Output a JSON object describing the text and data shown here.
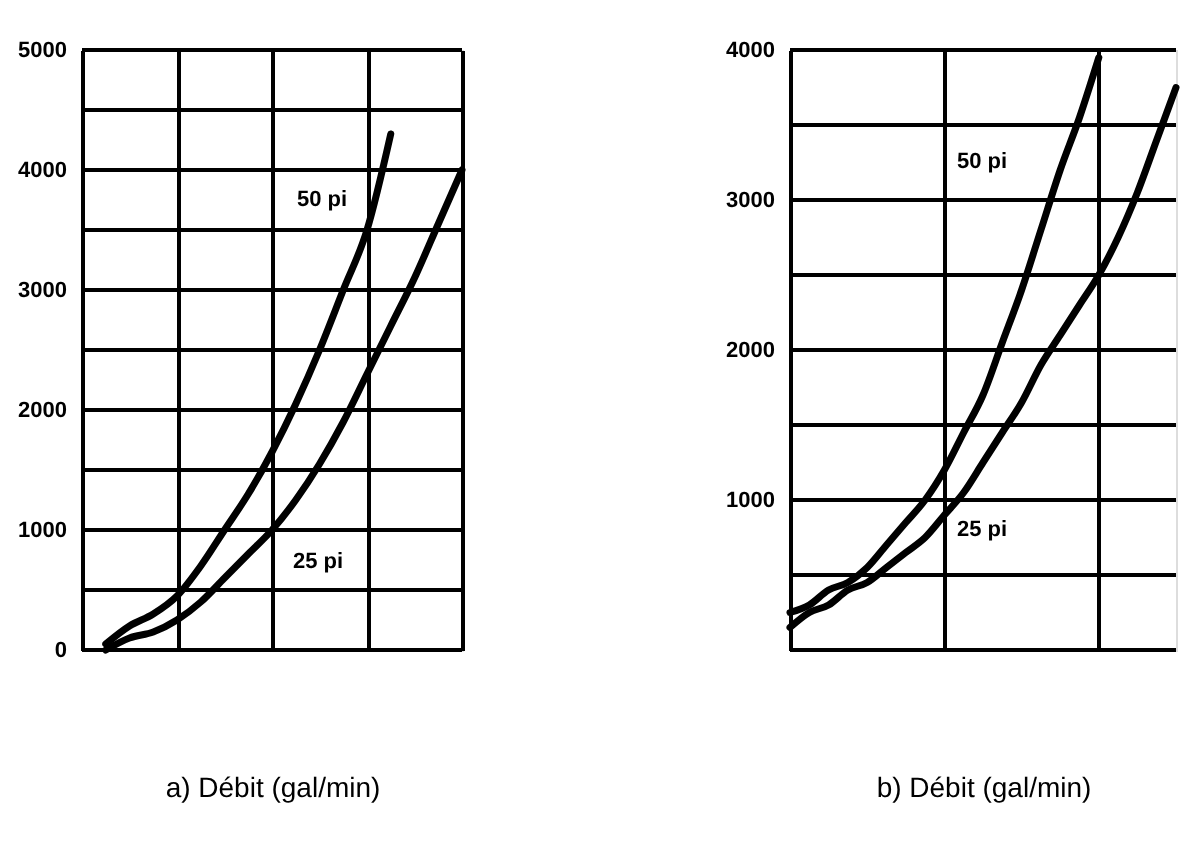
{
  "chart_data": [
    {
      "type": "line",
      "xlabel": "a) Débit (gal/min)",
      "categories": [
        null,
        null,
        null,
        null,
        null,
        null,
        null,
        null,
        null,
        null,
        null,
        null,
        null,
        null,
        null,
        null,
        null
      ],
      "series": [
        {
          "name": "50 pi",
          "color": "#000000",
          "values": [
            null,
            50,
            200,
            300,
            450,
            700,
            1000,
            1300,
            1650,
            2050,
            2500,
            3000,
            3500,
            4300,
            null,
            null,
            null
          ]
        },
        {
          "name": "25 pi",
          "color": "#000000",
          "values": [
            null,
            0,
            100,
            150,
            250,
            400,
            600,
            800,
            1000,
            1250,
            1550,
            1900,
            2300,
            2700,
            3100,
            3550,
            4000
          ]
        }
      ],
      "ylim": [
        0,
        5000
      ],
      "yticks": [
        0,
        {
          "value": 500,
          "label": null
        },
        1000,
        {
          "value": 1500,
          "label": null
        },
        2000,
        {
          "value": 2500,
          "label": null
        },
        3000,
        {
          "value": 3500,
          "label": null
        },
        4000,
        {
          "value": 4500,
          "label": null
        },
        5000
      ],
      "grid": true,
      "tick_labels": "y",
      "line_style": "solid",
      "marker": "none"
    },
    {
      "type": "line",
      "xlabel": "b) Débit (gal/min)",
      "categories": [
        null,
        null,
        null,
        null,
        null,
        null,
        null,
        null,
        null,
        null,
        null,
        null,
        null,
        null,
        null,
        null,
        null,
        null,
        null,
        null,
        null
      ],
      "series": [
        {
          "name": "50 pi",
          "color": "#000000",
          "values": [
            250,
            300,
            400,
            450,
            550,
            700,
            850,
            1000,
            1200,
            1450,
            1700,
            2050,
            2400,
            2800,
            3200,
            3550,
            3950,
            null,
            null,
            null,
            null
          ]
        },
        {
          "name": "25 pi",
          "color": "#000000",
          "values": [
            150,
            250,
            300,
            400,
            450,
            550,
            650,
            750,
            900,
            1050,
            1250,
            1450,
            1650,
            1900,
            2100,
            2300,
            2500,
            2750,
            3050,
            3400,
            3750
          ]
        }
      ],
      "ylim": [
        0,
        4000
      ],
      "yticks": [
        {
          "value": 0,
          "label": null
        },
        {
          "value": 500,
          "label": null
        },
        1000,
        {
          "value": 1500,
          "label": null
        },
        2000,
        {
          "value": 2500,
          "label": null
        },
        3000,
        {
          "value": 3500,
          "label": null
        },
        4000
      ],
      "grid": true,
      "tick_labels": "y",
      "line_style": "solid",
      "marker": "none"
    }
  ]
}
